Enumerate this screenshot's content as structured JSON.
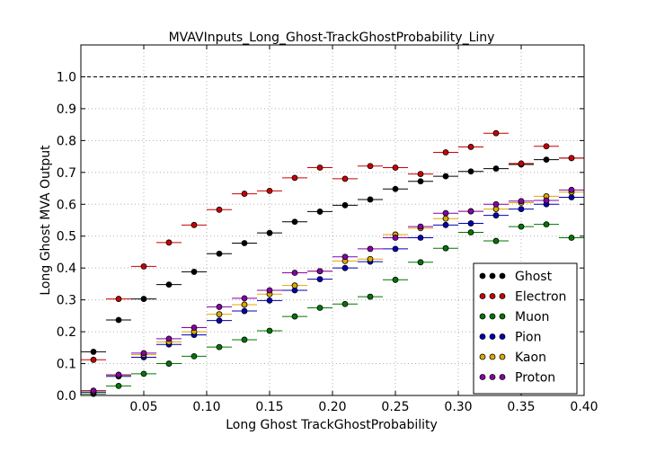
{
  "chart_data": {
    "type": "scatter",
    "title": "MVAVInputs_Long_Ghost-TrackGhostProbability_Liny",
    "xlabel": "Long Ghost TrackGhostProbability",
    "ylabel": "Long Ghost MVA Output",
    "xlim": [
      0.0,
      0.4
    ],
    "ylim": [
      0.0,
      1.1
    ],
    "xticks": [
      0.05,
      0.1,
      0.15,
      0.2,
      0.25,
      0.3,
      0.35,
      0.4
    ],
    "xtick_labels": [
      "0.05",
      "0.10",
      "0.15",
      "0.20",
      "0.25",
      "0.30",
      "0.35",
      "0.40"
    ],
    "yticks": [
      0.0,
      0.1,
      0.2,
      0.3,
      0.4,
      0.5,
      0.6,
      0.7,
      0.8,
      0.9,
      1.0
    ],
    "ytick_labels": [
      "0.0",
      "0.1",
      "0.2",
      "0.3",
      "0.4",
      "0.5",
      "0.6",
      "0.7",
      "0.8",
      "0.9",
      "1.0"
    ],
    "grid": true,
    "reference_line": 1.0,
    "legend_position": "bottom-right",
    "x": [
      0.01,
      0.03,
      0.05,
      0.07,
      0.09,
      0.11,
      0.13,
      0.15,
      0.17,
      0.19,
      0.21,
      0.23,
      0.25,
      0.27,
      0.29,
      0.31,
      0.33,
      0.35,
      0.37,
      0.39
    ],
    "x_bin_halfwidth": 0.01,
    "series": [
      {
        "name": "Ghost",
        "color": "#000000",
        "values": [
          0.137,
          0.237,
          0.303,
          0.348,
          0.388,
          0.445,
          0.478,
          0.51,
          0.545,
          0.577,
          0.597,
          0.615,
          0.648,
          0.672,
          0.688,
          0.703,
          0.712,
          0.725,
          0.74,
          0.745
        ]
      },
      {
        "name": "Electron",
        "color": "#cc0000",
        "values": [
          0.112,
          0.303,
          0.405,
          0.48,
          0.535,
          0.583,
          0.633,
          0.642,
          0.683,
          0.715,
          0.68,
          0.72,
          0.715,
          0.695,
          0.763,
          0.78,
          0.823,
          0.728,
          0.782,
          0.745
        ]
      },
      {
        "name": "Muon",
        "color": "#007700",
        "values": [
          0.005,
          0.03,
          0.068,
          0.1,
          0.123,
          0.152,
          0.175,
          0.203,
          0.248,
          0.275,
          0.287,
          0.31,
          0.363,
          0.418,
          0.462,
          0.512,
          0.485,
          0.53,
          0.537,
          0.495
        ]
      },
      {
        "name": "Pion",
        "color": "#0000bb",
        "values": [
          0.01,
          0.06,
          0.12,
          0.16,
          0.19,
          0.235,
          0.265,
          0.298,
          0.33,
          0.365,
          0.4,
          0.42,
          0.46,
          0.495,
          0.535,
          0.54,
          0.565,
          0.585,
          0.6,
          0.622
        ]
      },
      {
        "name": "Kaon",
        "color": "#ddaa00",
        "values": [
          0.012,
          0.063,
          0.128,
          0.168,
          0.2,
          0.255,
          0.285,
          0.318,
          0.345,
          0.39,
          0.422,
          0.428,
          0.505,
          0.525,
          0.555,
          0.578,
          0.585,
          0.605,
          0.625,
          0.638
        ]
      },
      {
        "name": "Proton",
        "color": "#8800aa",
        "values": [
          0.015,
          0.065,
          0.133,
          0.178,
          0.213,
          0.278,
          0.305,
          0.33,
          0.385,
          0.39,
          0.435,
          0.46,
          0.495,
          0.53,
          0.572,
          0.578,
          0.6,
          0.61,
          0.612,
          0.645
        ]
      }
    ]
  }
}
